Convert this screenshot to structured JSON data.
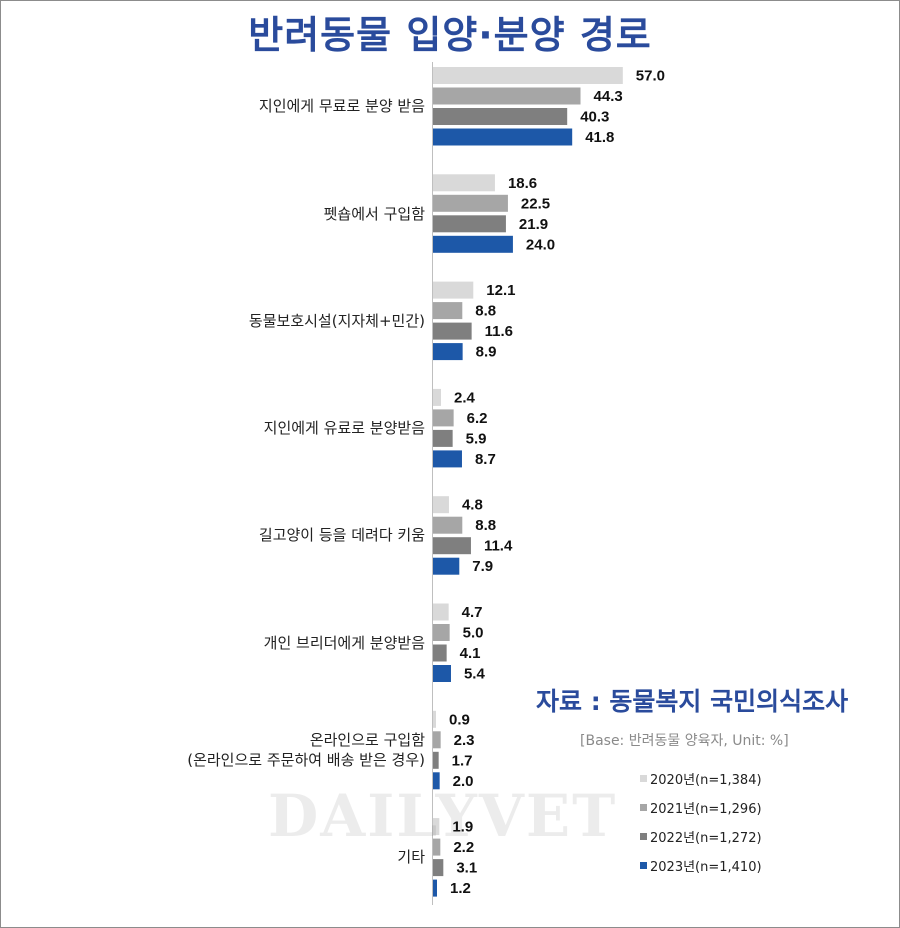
{
  "title": "반려동물 입양·분양 경로",
  "source": "자료 : 동물복지 국민의식조사",
  "base_note": "[Base: 반려동물 양육자, Unit: %]",
  "watermark": "DAILYVET",
  "chart_data": {
    "type": "bar",
    "orientation": "horizontal",
    "title": "반려동물 입양·분양 경로",
    "unit": "%",
    "categories": [
      "지인에게 무료로 분양 받음",
      "펫숍에서 구입함",
      "동물보호시설(지자체+민간)",
      "지인에게 유료로 분양받음",
      "길고양이 등을 데려다 키움",
      "개인 브리더에게 분양받음",
      "온라인으로 구입함\n(온라인으로 주문하여 배송 받은 경우)",
      "기타"
    ],
    "series": [
      {
        "name": "2020년(n=1,384)",
        "color": "#d9d9d9",
        "values": [
          57.0,
          18.6,
          12.1,
          2.4,
          4.8,
          4.7,
          0.9,
          1.9
        ]
      },
      {
        "name": "2021년(n=1,296)",
        "color": "#a6a6a6",
        "values": [
          44.3,
          22.5,
          8.8,
          6.2,
          8.8,
          5.0,
          2.3,
          2.2
        ]
      },
      {
        "name": "2022년(n=1,272)",
        "color": "#7f7f7f",
        "values": [
          40.3,
          21.9,
          11.6,
          5.9,
          11.4,
          4.1,
          1.7,
          3.1
        ]
      },
      {
        "name": "2023년(n=1,410)",
        "color": "#1d58a8",
        "values": [
          41.8,
          24.0,
          8.9,
          8.7,
          7.9,
          5.4,
          2.0,
          1.2
        ]
      }
    ],
    "grid": false,
    "legend_position": "bottom-right"
  }
}
